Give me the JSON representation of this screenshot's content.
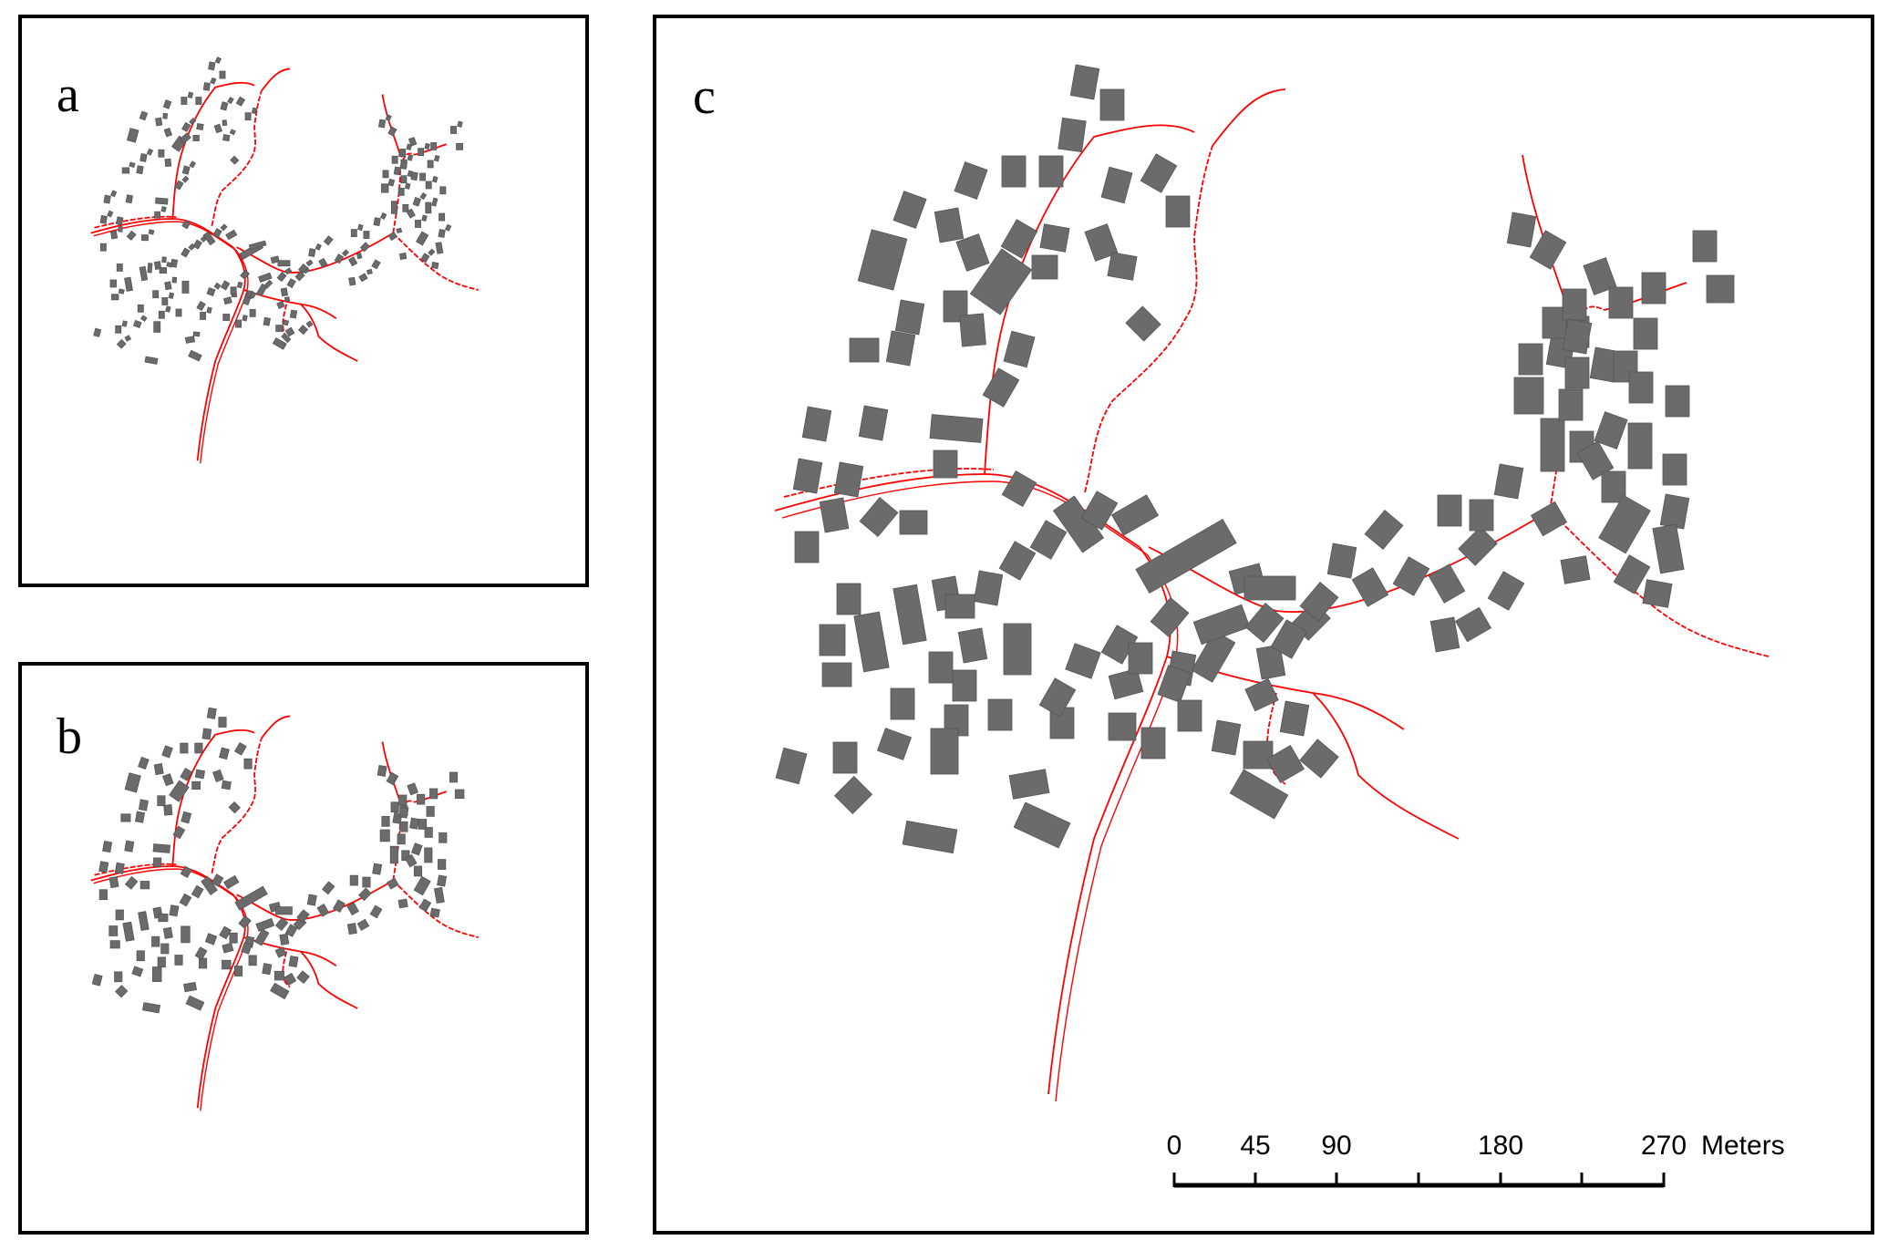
{
  "panels": [
    {
      "id": "a",
      "label": "a"
    },
    {
      "id": "b",
      "label": "b"
    },
    {
      "id": "c",
      "label": "c"
    }
  ],
  "scale_bar": {
    "ticks": [
      "0",
      "45",
      "90",
      "180",
      "270"
    ],
    "tick_values": [
      0,
      45,
      90,
      180,
      270
    ],
    "unit": "Meters"
  },
  "colors": {
    "road": "#ff0000",
    "building": "#6b6b6b",
    "frame": "#000000"
  }
}
